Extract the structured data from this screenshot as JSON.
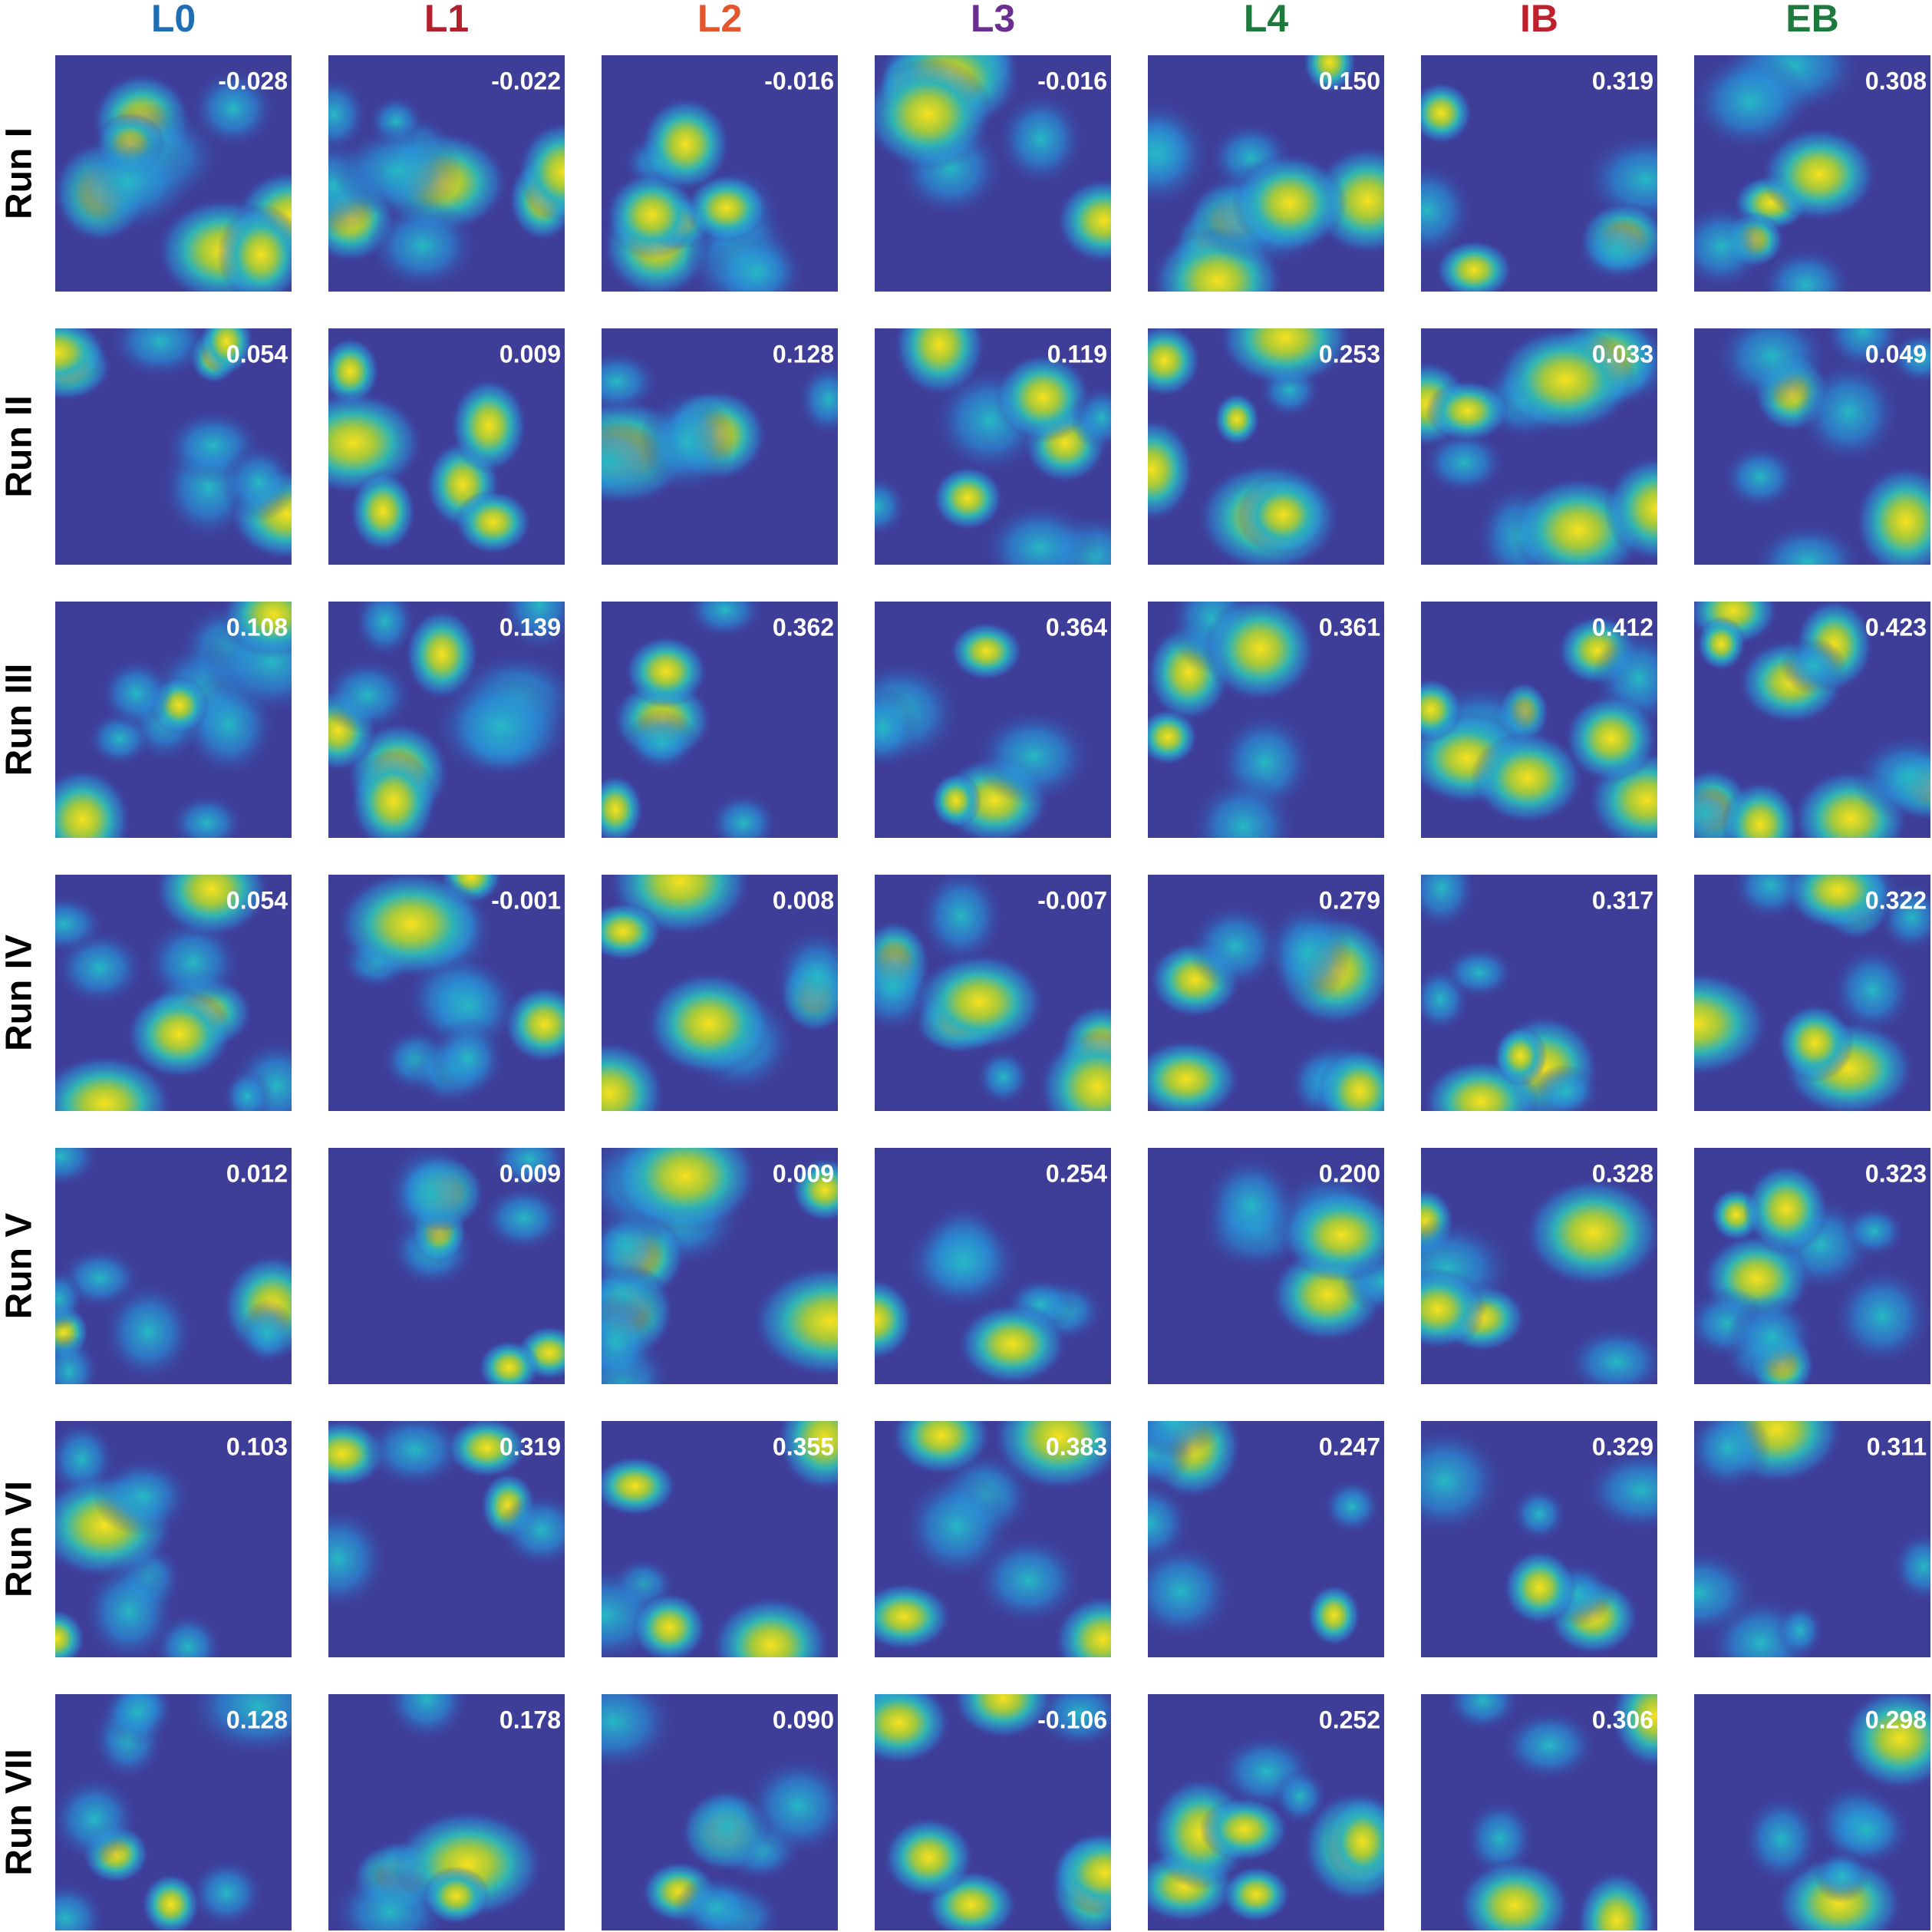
{
  "columns": [
    {
      "label": "L0",
      "color": "#1f6db3"
    },
    {
      "label": "L1",
      "color": "#b41f2e"
    },
    {
      "label": "L2",
      "color": "#e4562b"
    },
    {
      "label": "L3",
      "color": "#6a2d90"
    },
    {
      "label": "L4",
      "color": "#1c7a3c"
    },
    {
      "label": "IB",
      "color": "#c0202e"
    },
    {
      "label": "EB",
      "color": "#1c7a3c"
    }
  ],
  "rows": [
    {
      "label": "Run I",
      "scores": [
        "-0.028",
        "-0.022",
        "-0.016",
        "-0.016",
        "0.150",
        "0.319",
        "0.308"
      ]
    },
    {
      "label": "Run II",
      "scores": [
        "0.054",
        "0.009",
        "0.128",
        "0.119",
        "0.253",
        "0.033",
        "0.049"
      ]
    },
    {
      "label": "Run III",
      "scores": [
        "0.108",
        "0.139",
        "0.362",
        "0.364",
        "0.361",
        "0.412",
        "0.423"
      ]
    },
    {
      "label": "Run IV",
      "scores": [
        "0.054",
        "-0.001",
        "0.008",
        "-0.007",
        "0.279",
        "0.317",
        "0.322"
      ]
    },
    {
      "label": "Run V",
      "scores": [
        "0.012",
        "0.009",
        "0.009",
        "0.254",
        "0.200",
        "0.328",
        "0.323"
      ]
    },
    {
      "label": "Run VI",
      "scores": [
        "0.103",
        "0.319",
        "0.355",
        "0.383",
        "0.247",
        "0.329",
        "0.311"
      ]
    },
    {
      "label": "Run VII",
      "scores": [
        "0.128",
        "0.178",
        "0.090",
        "-0.106",
        "0.252",
        "0.306",
        "0.298"
      ]
    }
  ]
}
